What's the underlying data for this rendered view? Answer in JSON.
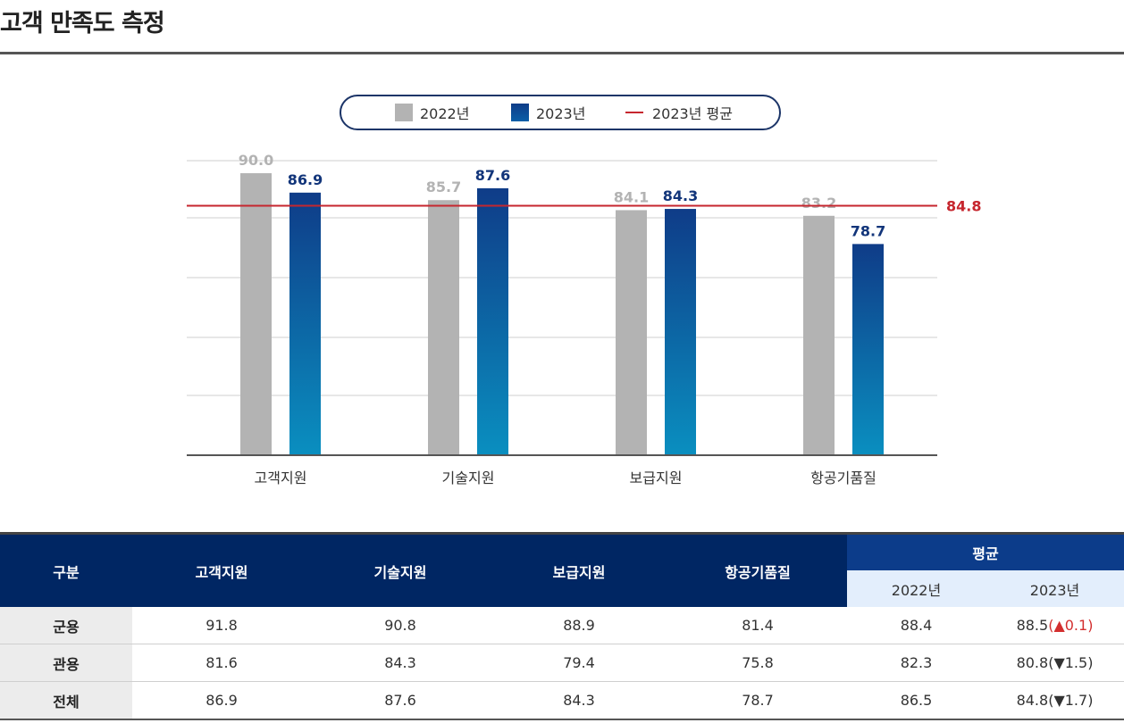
{
  "page": {
    "title": "고객 만족도 측정"
  },
  "legend": {
    "series_2022": "2022년",
    "series_2023": "2023년",
    "average_line": "2023년 평균"
  },
  "colors": {
    "bar_2022": "#b3b3b3",
    "bar_2023_top": "#0f3c88",
    "bar_2023_bottom": "#0a8fc0",
    "average_line": "#c6262e",
    "label_2023": "#12357a",
    "table_header": "#002663"
  },
  "chart_data": {
    "type": "bar",
    "categories": [
      "고객지원",
      "기술지원",
      "보급지원",
      "항공기품질"
    ],
    "series": [
      {
        "name": "2022년",
        "values": [
          90.0,
          85.7,
          84.1,
          83.2
        ]
      },
      {
        "name": "2023년",
        "values": [
          86.9,
          87.6,
          84.3,
          78.7
        ]
      }
    ],
    "reference_line": {
      "name": "2023년 평균",
      "value": 84.8
    },
    "ylim": [
      45,
      92
    ],
    "grid": true,
    "legend_position": "top-center",
    "xlabel": "",
    "ylabel": ""
  },
  "table": {
    "header": {
      "category": "구분",
      "columns": [
        "고객지원",
        "기술지원",
        "보급지원",
        "항공기품질"
      ],
      "average": "평균",
      "average_years": [
        "2022년",
        "2023년"
      ]
    },
    "rows": [
      {
        "label": "군용",
        "values": [
          "91.8",
          "90.8",
          "88.9",
          "81.4"
        ],
        "avg_2022": "88.4",
        "avg_2023": "88.5",
        "change_symbol": "▲",
        "change": "0.1",
        "direction": "up"
      },
      {
        "label": "관용",
        "values": [
          "81.6",
          "84.3",
          "79.4",
          "75.8"
        ],
        "avg_2022": "82.3",
        "avg_2023": "80.8",
        "change_symbol": "▼",
        "change": "1.5",
        "direction": "down"
      },
      {
        "label": "전체",
        "values": [
          "86.9",
          "87.6",
          "84.3",
          "78.7"
        ],
        "avg_2022": "86.5",
        "avg_2023": "84.8",
        "change_symbol": "▼",
        "change": "1.7",
        "direction": "down"
      }
    ]
  }
}
